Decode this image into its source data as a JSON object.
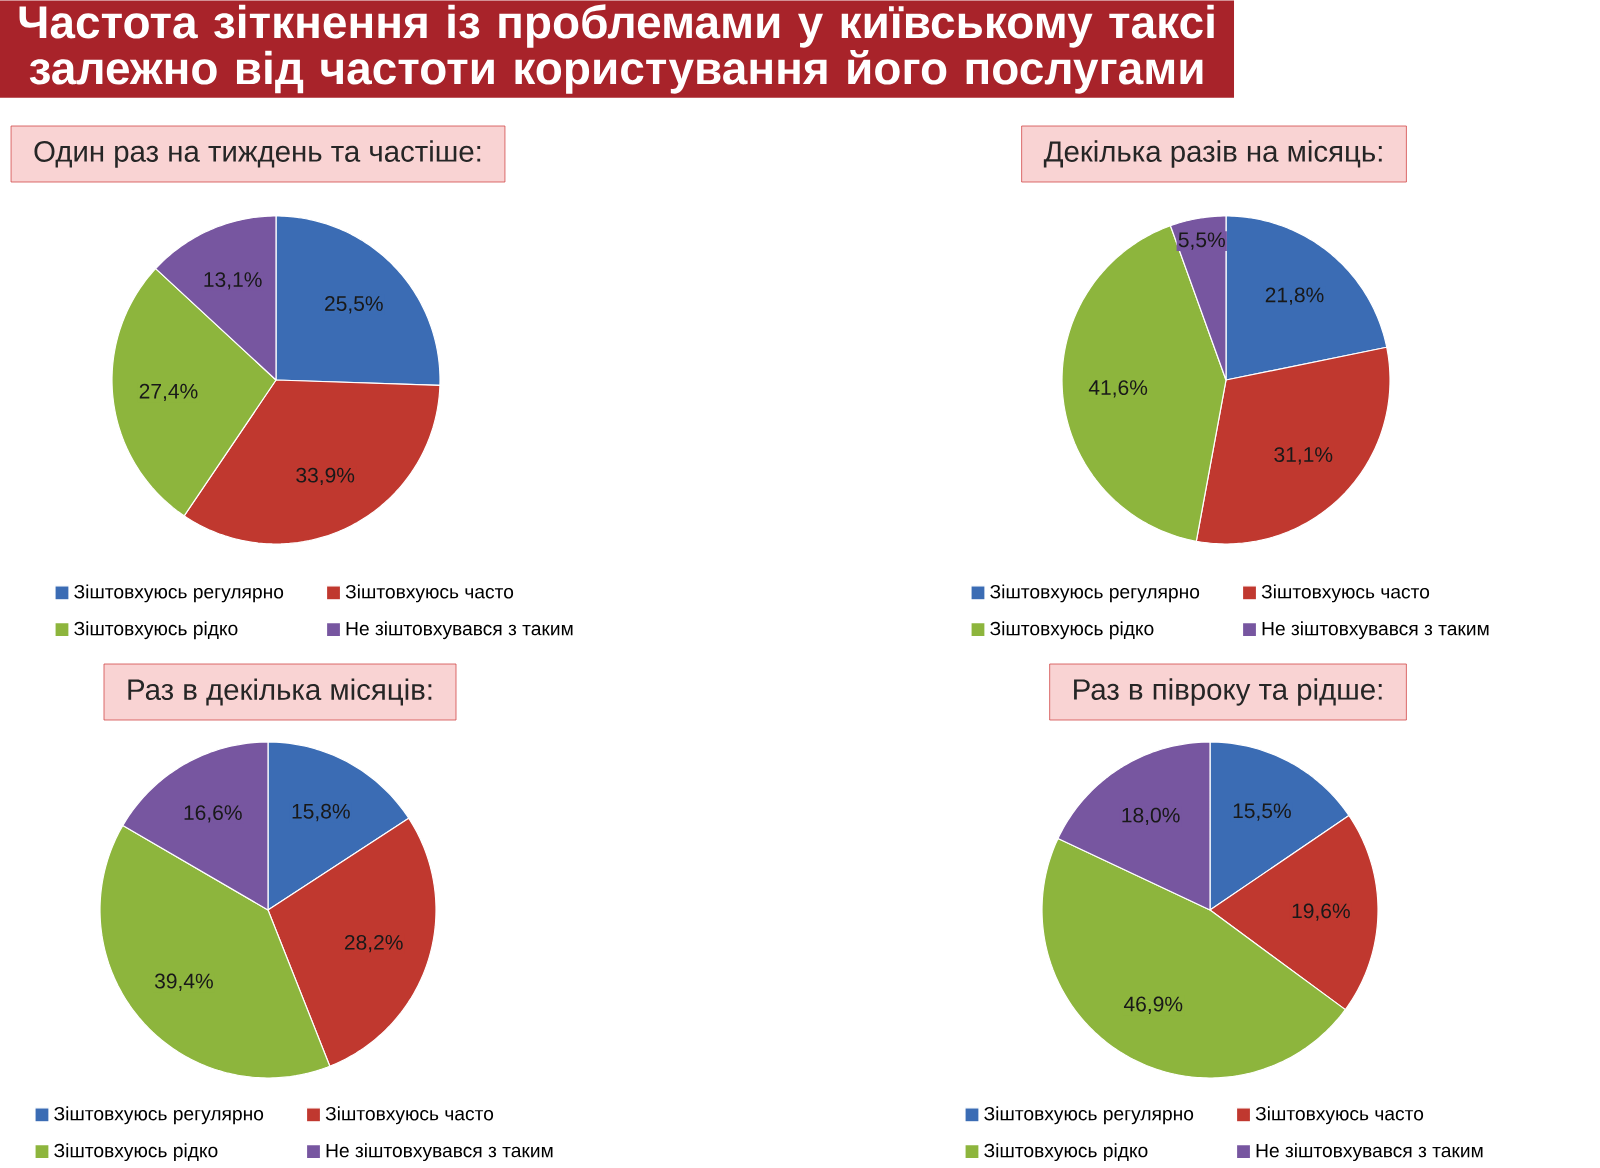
{
  "chart_data": [
    {
      "type": "other",
      "title": "Частота зіткнення із проблемами у київському таксі залежно від частоти користування його послугами"
    },
    {
      "type": "pie",
      "title": "Один раз на тиждень та частіше:",
      "categories": [
        "Зіштовхуюсь регулярно",
        "Зіштовхуюсь часто",
        "Зіштовхуюсь рідко",
        "Не зіштовхувався з таким"
      ],
      "values": [
        25.5,
        33.9,
        27.4,
        13.1
      ],
      "colors": [
        "#3b6cb4",
        "#c0382f",
        "#8db53d",
        "#7756a0"
      ],
      "value_labels": [
        "25,5%",
        "33,9%",
        "27,4%",
        "13,1%"
      ],
      "legend": "bottom"
    },
    {
      "type": "pie",
      "title": "Декілька разів на місяць:",
      "categories": [
        "Зіштовхуюсь регулярно",
        "Зіштовхуюсь часто",
        "Зіштовхуюсь рідко",
        "Не зіштовхувався з таким"
      ],
      "values": [
        21.8,
        31.1,
        41.6,
        5.5
      ],
      "colors": [
        "#3b6cb4",
        "#c0382f",
        "#8db53d",
        "#7756a0"
      ],
      "value_labels": [
        "21,8%",
        "31,1%",
        "41,6%",
        "5,5%"
      ],
      "legend": "bottom"
    },
    {
      "type": "pie",
      "title": "Раз в декілька місяців:",
      "categories": [
        "Зіштовхуюсь регулярно",
        "Зіштовхуюсь часто",
        "Зіштовхуюсь рідко",
        "Не зіштовхувався з таким"
      ],
      "values": [
        15.8,
        28.2,
        39.4,
        16.6
      ],
      "colors": [
        "#3b6cb4",
        "#c0382f",
        "#8db53d",
        "#7756a0"
      ],
      "value_labels": [
        "15,8%",
        "28,2%",
        "39,4%",
        "16,6%"
      ],
      "legend": "bottom"
    },
    {
      "type": "pie",
      "title": "Раз в півроку та рідше:",
      "categories": [
        "Зіштовхуюсь регулярно",
        "Зіштовхуюсь часто",
        "Зіштовхуюсь рідко",
        "Не зіштовхувався з таким"
      ],
      "values": [
        15.5,
        19.6,
        46.9,
        18.0
      ],
      "colors": [
        "#3b6cb4",
        "#c0382f",
        "#8db53d",
        "#7756a0"
      ],
      "value_labels": [
        "15,5%",
        "19,6%",
        "46,9%",
        "18,0%"
      ],
      "legend": "bottom"
    }
  ]
}
